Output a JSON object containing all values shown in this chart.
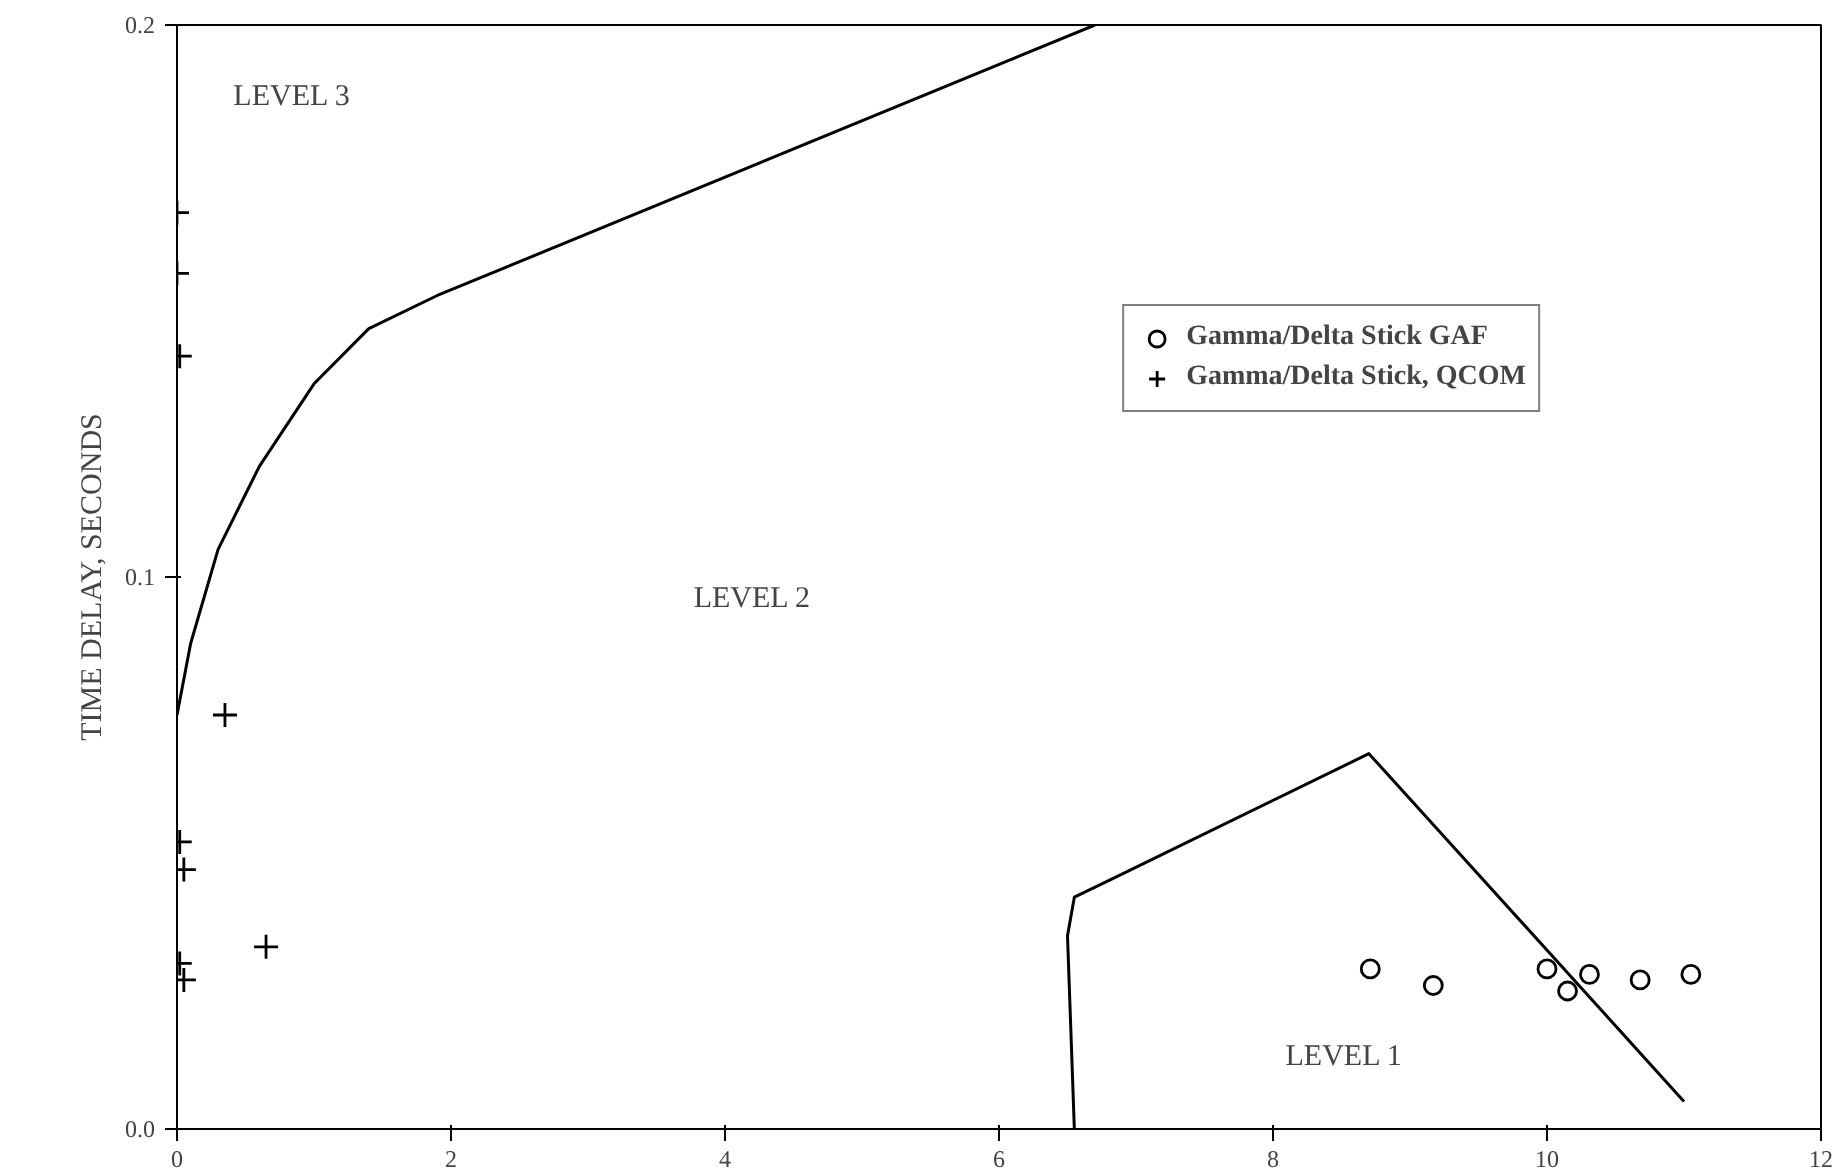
{
  "chart_data": {
    "type": "scatter",
    "ylabel": "TIME DELAY, SECONDS",
    "xlim": [
      0,
      12
    ],
    "ylim": [
      0,
      0.2
    ],
    "xticks": [
      0,
      2,
      4,
      6,
      8,
      10,
      12
    ],
    "yticks": [
      {
        "value": 0,
        "label": "0.0"
      },
      {
        "value": 0.1,
        "label": "0.1"
      },
      {
        "value": 0.2,
        "label": "0.2"
      }
    ],
    "grid": false,
    "legend": "top right",
    "series": [
      {
        "name": "Gamma/Delta Stick GAF",
        "color": "#000000",
        "marker": "circle",
        "x": [
          8.71,
          9.17,
          10.0,
          10.15,
          10.31,
          10.68,
          11.05
        ],
        "values": [
          0.029,
          0.026,
          0.029,
          0.025,
          0.028,
          0.027,
          0.028
        ]
      },
      {
        "name": "Gamma/Delta Stick, QCOM",
        "color": "#000000",
        "marker": "cross",
        "x": [
          0.0,
          0.0,
          0.02,
          0.35,
          0.02,
          0.05,
          0.65,
          0.02,
          0.05
        ],
        "values": [
          0.166,
          0.155,
          0.14,
          0.075,
          0.052,
          0.047,
          0.033,
          0.03,
          0.027
        ]
      },
      {
        "type": "line",
        "color": "#000000",
        "x": [
          0,
          0.1,
          0.3,
          0.6,
          1.0,
          1.4,
          1.9,
          6.7
        ],
        "values": [
          0.075,
          0.088,
          0.105,
          0.12,
          0.135,
          0.145,
          0.151,
          0.2
        ]
      },
      {
        "type": "line",
        "color": "#000000",
        "x": [
          6.55,
          6.5,
          6.55,
          6.8,
          8.7,
          11.0
        ],
        "values": [
          0,
          0.035,
          0.042,
          0.045,
          0.068,
          0.005
        ]
      }
    ],
    "annotations": [
      "LEVEL 3",
      "LEVEL 2",
      "LEVEL 1"
    ]
  }
}
